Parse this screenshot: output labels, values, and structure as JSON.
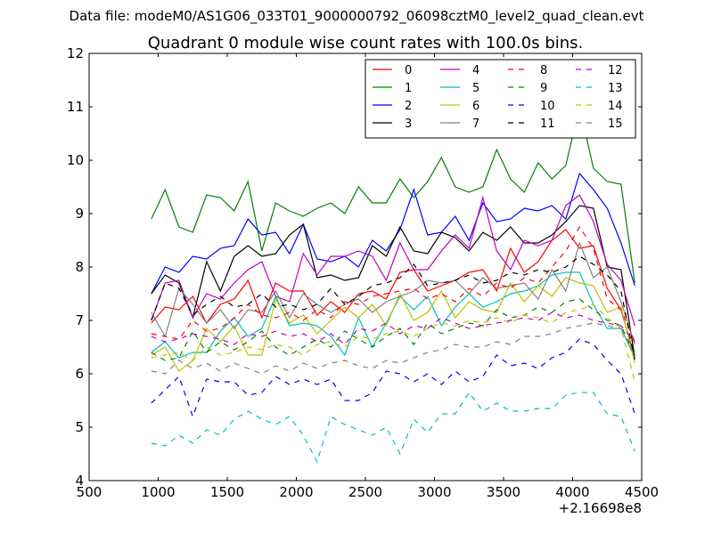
{
  "suptitle": "Data file: modeM0/AS1G06_033T01_9000000792_06098cztM0_level2_quad_clean.evt",
  "chart_data": {
    "type": "line",
    "title": "Quadrant 0 module wise count rates with 100.0s bins.",
    "xlabel": "",
    "ylabel": "",
    "x_offset_label": "+2.16698e8",
    "xlim": [
      500,
      4500
    ],
    "ylim": [
      4,
      12
    ],
    "x_ticks": [
      500,
      1000,
      1500,
      2000,
      2500,
      3000,
      3500,
      4000,
      4500
    ],
    "y_ticks": [
      4,
      5,
      6,
      7,
      8,
      9,
      10,
      11,
      12
    ],
    "grid": false,
    "legend_position": "top-right",
    "legend_columns": 4,
    "x": [
      950,
      1050,
      1150,
      1250,
      1350,
      1450,
      1550,
      1650,
      1750,
      1850,
      1950,
      2050,
      2150,
      2250,
      2350,
      2450,
      2550,
      2650,
      2750,
      2850,
      2950,
      3050,
      3150,
      3250,
      3350,
      3450,
      3550,
      3650,
      3750,
      3850,
      3950,
      4050,
      4150,
      4250,
      4350,
      4450
    ],
    "series": [
      {
        "name": "0",
        "color": "#ff0000",
        "dash": "solid",
        "values": [
          6.95,
          7.25,
          7.2,
          7.45,
          6.95,
          7.3,
          7.4,
          7.75,
          7.05,
          7.7,
          7.55,
          7.55,
          7.1,
          7.35,
          7.15,
          7.5,
          7.55,
          7.4,
          7.9,
          7.95,
          7.55,
          7.65,
          7.75,
          7.9,
          7.95,
          7.55,
          8.35,
          7.9,
          8.1,
          8.5,
          8.7,
          8.35,
          8.4,
          7.6,
          7.2,
          6.3
        ]
      },
      {
        "name": "1",
        "color": "#008000",
        "dash": "solid",
        "values": [
          8.9,
          9.45,
          8.75,
          8.65,
          9.35,
          9.3,
          9.05,
          9.6,
          8.3,
          9.2,
          9.05,
          8.95,
          9.1,
          9.2,
          9.0,
          9.5,
          9.2,
          9.2,
          9.65,
          9.3,
          9.6,
          10.05,
          9.5,
          9.4,
          9.5,
          10.2,
          9.65,
          9.4,
          9.95,
          9.65,
          9.9,
          11.0,
          9.85,
          9.6,
          9.55,
          7.7
        ]
      },
      {
        "name": "2",
        "color": "#0000ff",
        "dash": "solid",
        "values": [
          7.5,
          8.0,
          7.9,
          8.2,
          8.15,
          8.35,
          8.4,
          8.9,
          8.6,
          8.65,
          8.25,
          8.8,
          8.15,
          8.1,
          8.2,
          8.0,
          8.5,
          8.3,
          8.7,
          9.45,
          8.6,
          8.65,
          8.95,
          8.5,
          9.2,
          8.85,
          8.9,
          9.1,
          9.05,
          9.15,
          8.9,
          9.75,
          9.45,
          9.1,
          8.45,
          7.65
        ]
      },
      {
        "name": "3",
        "color": "#000000",
        "dash": "solid",
        "values": [
          7.5,
          7.85,
          7.7,
          7.05,
          8.1,
          7.55,
          8.2,
          8.4,
          8.2,
          8.25,
          8.6,
          8.8,
          7.8,
          7.85,
          7.75,
          7.8,
          8.4,
          8.2,
          8.75,
          8.3,
          8.25,
          8.65,
          8.55,
          8.3,
          8.65,
          8.5,
          8.75,
          8.45,
          8.45,
          8.6,
          8.85,
          9.15,
          9.1,
          8.0,
          7.95,
          6.3
        ]
      },
      {
        "name": "4",
        "color": "#bf00bf",
        "dash": "solid",
        "values": [
          7.0,
          7.7,
          7.75,
          7.05,
          7.5,
          7.4,
          7.7,
          7.95,
          8.1,
          7.45,
          7.35,
          8.25,
          7.85,
          8.2,
          8.2,
          8.3,
          8.2,
          7.75,
          8.45,
          7.95,
          7.95,
          8.3,
          8.6,
          8.35,
          9.3,
          8.3,
          7.95,
          8.5,
          8.4,
          8.5,
          9.15,
          9.35,
          8.85,
          8.05,
          7.75,
          6.9
        ]
      },
      {
        "name": "5",
        "color": "#00bfbf",
        "dash": "solid",
        "values": [
          6.4,
          6.6,
          6.3,
          6.4,
          6.4,
          6.8,
          7.05,
          6.7,
          6.85,
          7.45,
          6.9,
          6.95,
          6.9,
          6.7,
          6.35,
          7.05,
          6.5,
          6.95,
          7.45,
          7.2,
          7.45,
          6.9,
          7.25,
          7.5,
          7.25,
          7.35,
          7.5,
          7.55,
          7.65,
          7.85,
          7.9,
          7.9,
          7.3,
          6.85,
          6.85,
          6.3
        ]
      },
      {
        "name": "6",
        "color": "#bfbf00",
        "dash": "solid",
        "values": [
          6.35,
          6.5,
          6.05,
          6.25,
          6.85,
          6.6,
          6.9,
          6.35,
          6.35,
          7.4,
          6.95,
          7.1,
          6.75,
          7.0,
          7.25,
          7.05,
          7.3,
          6.9,
          7.5,
          7.0,
          7.15,
          7.55,
          7.05,
          7.35,
          7.2,
          7.15,
          7.7,
          7.35,
          7.65,
          7.45,
          7.8,
          7.7,
          7.65,
          7.15,
          7.25,
          6.2
        ]
      },
      {
        "name": "7",
        "color": "#808080",
        "dash": "solid",
        "values": [
          7.15,
          6.7,
          7.6,
          7.3,
          6.95,
          7.2,
          6.85,
          7.2,
          7.15,
          7.55,
          7.05,
          7.5,
          7.3,
          7.15,
          7.3,
          7.4,
          7.15,
          7.35,
          7.45,
          7.55,
          7.75,
          7.7,
          7.75,
          7.5,
          7.8,
          7.6,
          7.65,
          7.7,
          7.4,
          7.95,
          7.55,
          8.45,
          7.8,
          8.0,
          7.35,
          6.55
        ]
      },
      {
        "name": "8",
        "color": "#ff0000",
        "dash": "dashed",
        "values": [
          6.75,
          6.7,
          6.65,
          7.0,
          6.8,
          6.85,
          7.05,
          7.3,
          7.1,
          7.05,
          7.15,
          7.0,
          7.2,
          7.05,
          7.35,
          7.3,
          7.45,
          7.5,
          7.55,
          7.6,
          7.4,
          7.5,
          7.35,
          7.6,
          7.45,
          7.7,
          7.6,
          7.8,
          7.7,
          8.0,
          8.3,
          8.75,
          8.35,
          7.4,
          7.2,
          6.6
        ]
      },
      {
        "name": "9",
        "color": "#008000",
        "dash": "dashed",
        "values": [
          6.4,
          6.25,
          6.3,
          6.8,
          6.4,
          6.6,
          6.45,
          6.6,
          6.8,
          6.5,
          6.35,
          6.5,
          6.65,
          6.5,
          6.8,
          6.65,
          6.5,
          6.7,
          6.85,
          6.55,
          6.95,
          6.75,
          6.85,
          6.95,
          6.9,
          7.2,
          7.05,
          7.1,
          7.25,
          7.15,
          7.35,
          7.4,
          7.2,
          7.0,
          6.9,
          6.35
        ]
      },
      {
        "name": "10",
        "color": "#0000ff",
        "dash": "dashed",
        "values": [
          5.45,
          5.7,
          5.95,
          5.2,
          5.9,
          5.85,
          5.85,
          5.6,
          5.65,
          5.95,
          5.8,
          5.9,
          5.8,
          5.9,
          5.5,
          5.5,
          5.65,
          6.05,
          6.0,
          5.85,
          6.0,
          5.8,
          6.05,
          5.85,
          5.95,
          6.35,
          6.15,
          6.2,
          6.1,
          6.3,
          6.4,
          6.65,
          6.55,
          6.25,
          6.0,
          5.25
        ]
      },
      {
        "name": "11",
        "color": "#000000",
        "dash": "dashed",
        "values": [
          7.0,
          7.7,
          7.6,
          7.1,
          7.3,
          7.45,
          7.25,
          7.3,
          7.5,
          7.25,
          7.3,
          7.2,
          7.3,
          7.6,
          7.3,
          7.45,
          7.65,
          7.7,
          7.8,
          8.05,
          7.65,
          7.7,
          7.75,
          7.85,
          7.7,
          7.75,
          7.9,
          7.85,
          7.95,
          7.9,
          8.0,
          8.2,
          8.05,
          7.85,
          7.55,
          6.25
        ]
      },
      {
        "name": "12",
        "color": "#bf00bf",
        "dash": "dashed",
        "values": [
          6.7,
          6.6,
          6.65,
          6.75,
          6.7,
          6.65,
          6.55,
          6.75,
          6.7,
          6.8,
          6.7,
          6.75,
          6.6,
          6.75,
          6.55,
          6.85,
          6.8,
          6.95,
          6.75,
          6.9,
          6.85,
          7.05,
          6.95,
          6.85,
          6.9,
          6.95,
          7.0,
          7.05,
          7.0,
          7.15,
          7.05,
          7.1,
          7.0,
          6.95,
          6.9,
          6.6
        ]
      },
      {
        "name": "13",
        "color": "#00bfbf",
        "dash": "dashed",
        "values": [
          4.7,
          4.65,
          4.85,
          4.7,
          4.95,
          4.85,
          5.15,
          5.3,
          5.15,
          5.05,
          5.2,
          4.85,
          4.35,
          5.2,
          5.05,
          4.95,
          4.85,
          5.0,
          4.5,
          5.15,
          4.9,
          5.25,
          5.25,
          5.65,
          5.3,
          5.45,
          5.3,
          5.3,
          5.35,
          5.35,
          5.6,
          5.65,
          5.65,
          5.25,
          5.2,
          4.55
        ]
      },
      {
        "name": "14",
        "color": "#bfbf00",
        "dash": "dashed",
        "values": [
          6.3,
          6.35,
          6.4,
          6.25,
          6.5,
          6.35,
          6.4,
          6.5,
          6.45,
          6.55,
          6.5,
          6.35,
          6.55,
          6.6,
          6.5,
          6.7,
          6.65,
          6.75,
          6.8,
          6.7,
          6.85,
          6.95,
          6.9,
          7.0,
          6.95,
          7.05,
          6.95,
          7.1,
          7.05,
          6.95,
          7.15,
          7.2,
          7.3,
          7.05,
          6.85,
          5.85
        ]
      },
      {
        "name": "15",
        "color": "#808080",
        "dash": "dashed",
        "values": [
          6.05,
          6.0,
          6.25,
          6.1,
          6.2,
          6.05,
          6.2,
          6.1,
          6.0,
          6.15,
          6.05,
          6.2,
          6.1,
          6.2,
          6.25,
          6.15,
          6.1,
          6.25,
          6.2,
          6.3,
          6.4,
          6.45,
          6.55,
          6.5,
          6.5,
          6.6,
          6.55,
          6.7,
          6.7,
          6.75,
          6.85,
          6.9,
          6.95,
          6.9,
          6.85,
          6.3
        ]
      }
    ]
  }
}
